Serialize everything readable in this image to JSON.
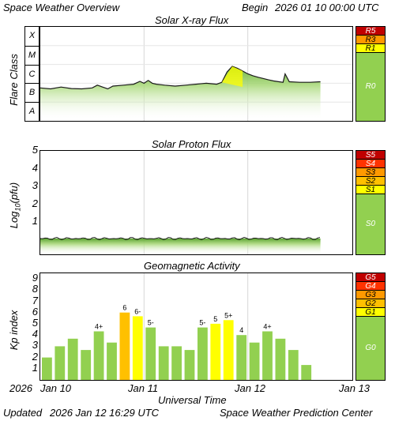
{
  "header": {
    "title": "Space Weather Overview",
    "begin_label": "Begin",
    "begin_value": "2026 01 10 00:00 UTC"
  },
  "footer": {
    "updated_label": "Updated",
    "updated_value": "2026 Jan 12 16:29 UTC",
    "source": "Space Weather Prediction Center"
  },
  "colors": {
    "green": "#92d050",
    "yellow": "#ffff00",
    "light_orange": "#ffc000",
    "orange": "#ff9900",
    "red_orange": "#ff3300",
    "dark_red": "#c00000"
  },
  "chart_data": [
    {
      "type": "area",
      "title": "Solar X-ray Flux",
      "ylabel": "Flare Class",
      "y_classes": [
        "A",
        "B",
        "C",
        "M",
        "X"
      ],
      "ylim": [
        -8,
        -3
      ],
      "x": [
        0,
        0.1,
        0.2,
        0.3,
        0.4,
        0.5,
        0.55,
        0.6,
        0.65,
        0.7,
        0.8,
        0.9,
        0.96,
        1.0,
        1.04,
        1.08,
        1.12,
        1.2,
        1.3,
        1.4,
        1.5,
        1.6,
        1.7,
        1.75,
        1.8,
        1.85,
        1.9,
        1.95,
        2.0,
        2.05,
        2.1,
        2.15,
        2.2,
        2.25,
        2.3,
        2.34,
        2.36,
        2.4,
        2.5,
        2.6,
        2.7
      ],
      "values": [
        -6.25,
        -6.3,
        -6.2,
        -6.28,
        -6.3,
        -6.25,
        -6.1,
        -6.2,
        -6.3,
        -6.15,
        -6.1,
        -6.05,
        -5.9,
        -6.0,
        -5.85,
        -6.0,
        -6.05,
        -6.1,
        -6.15,
        -6.1,
        -6.05,
        -6.0,
        -6.05,
        -5.95,
        -5.4,
        -5.1,
        -5.2,
        -5.35,
        -5.5,
        -5.6,
        -5.68,
        -5.75,
        -5.82,
        -5.88,
        -5.92,
        -5.95,
        -5.5,
        -5.92,
        -5.95,
        -5.95,
        -5.92
      ],
      "scale": [
        {
          "label": "R5",
          "color": "#c00000"
        },
        {
          "label": "R3",
          "color": "#ff9900"
        },
        {
          "label": "R1",
          "color": "#ffff00"
        },
        {
          "label": "R0",
          "color": "#92d050"
        }
      ]
    },
    {
      "type": "area",
      "title": "Solar Proton Flux",
      "ylabel": "Log10(pfu)",
      "ylabel_main": "Log",
      "ylabel_sub": "10",
      "ylabel_tail": "(pfu)",
      "yticks": [
        "1",
        "2",
        "3",
        "4",
        "5"
      ],
      "ylim": [
        0,
        5.8
      ],
      "x_range": [
        0,
        2.7
      ],
      "level": -0.45,
      "scale": [
        {
          "label": "S5",
          "color": "#c00000"
        },
        {
          "label": "S4",
          "color": "#ff3300"
        },
        {
          "label": "S3",
          "color": "#ff9900"
        },
        {
          "label": "S2",
          "color": "#ffc000"
        },
        {
          "label": "S1",
          "color": "#ffff00"
        },
        {
          "label": "S0",
          "color": "#92d050"
        }
      ]
    },
    {
      "type": "bar",
      "title": "Geomagnetic Activity",
      "ylabel": "Kp index",
      "yticks": [
        "1",
        "2",
        "3",
        "4",
        "5",
        "6",
        "7",
        "8",
        "9"
      ],
      "ylim": [
        0,
        9.5
      ],
      "values": [
        2,
        3,
        3.67,
        2.67,
        4.33,
        3.33,
        6,
        5.67,
        4.67,
        3,
        3,
        2.67,
        4.67,
        5,
        5.33,
        4,
        3.33,
        4.33,
        3.67,
        2.67,
        1.33
      ],
      "bar_labels": [
        "",
        "",
        "",
        "",
        "4+",
        "",
        "6",
        "6-",
        "5-",
        "",
        "",
        "",
        "5-",
        "5",
        "5+",
        "4",
        "",
        "4+",
        "",
        "",
        ""
      ],
      "bar_colors": [
        "#92d050",
        "#92d050",
        "#92d050",
        "#92d050",
        "#92d050",
        "#92d050",
        "#ffc000",
        "#ffff00",
        "#92d050",
        "#92d050",
        "#92d050",
        "#92d050",
        "#92d050",
        "#ffff00",
        "#ffff00",
        "#92d050",
        "#92d050",
        "#92d050",
        "#92d050",
        "#92d050",
        "#92d050"
      ],
      "scale": [
        {
          "label": "G5",
          "color": "#c00000"
        },
        {
          "label": "G4",
          "color": "#ff3300"
        },
        {
          "label": "G3",
          "color": "#ff9900"
        },
        {
          "label": "G2",
          "color": "#ffc000"
        },
        {
          "label": "G1",
          "color": "#ffff00"
        },
        {
          "label": "G0",
          "color": "#92d050"
        }
      ]
    }
  ],
  "x_axis": {
    "label": "Universal Time",
    "year": "2026",
    "ticks": [
      "Jan 10",
      "Jan 11",
      "Jan 12",
      "Jan 13"
    ]
  }
}
